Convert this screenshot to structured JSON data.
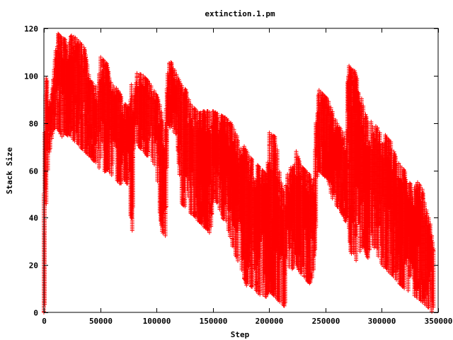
{
  "chart_data": {
    "type": "scatter",
    "title": "extinction.1.pm",
    "xlabel": "Step",
    "ylabel": "Stack Size",
    "xlim": [
      0,
      350000
    ],
    "ylim": [
      0,
      120
    ],
    "x_ticks": [
      0,
      50000,
      100000,
      150000,
      200000,
      250000,
      300000,
      350000
    ],
    "x_tick_labels": [
      "0",
      "50000",
      "100000",
      "150000",
      "200000",
      "250000",
      "300000",
      "350000"
    ],
    "y_ticks": [
      0,
      20,
      40,
      60,
      80,
      100,
      120
    ],
    "y_tick_labels": [
      "0",
      "20",
      "40",
      "60",
      "80",
      "100",
      "120"
    ],
    "grid": false,
    "legend": "none",
    "marker": "plus",
    "color": "#ff0000",
    "envelope": {
      "x": [
        0,
        1000,
        2000,
        4000,
        6000,
        8000,
        10000,
        12000,
        14000,
        16000,
        20000,
        24000,
        28000,
        32000,
        36000,
        40000,
        44000,
        48000,
        50000,
        52000,
        56000,
        60000,
        64000,
        68000,
        72000,
        76000,
        78000,
        80000,
        82000,
        84000,
        88000,
        92000,
        96000,
        100000,
        104000,
        106000,
        108000,
        110000,
        112000,
        114000,
        118000,
        122000,
        126000,
        130000,
        134000,
        138000,
        142000,
        146000,
        148000,
        150000,
        154000,
        158000,
        162000,
        166000,
        170000,
        174000,
        178000,
        180000,
        182000,
        186000,
        190000,
        194000,
        198000,
        200000,
        202000,
        206000,
        210000,
        212000,
        214000,
        216000,
        220000,
        224000,
        228000,
        232000,
        236000,
        240000,
        242000,
        244000,
        248000,
        252000,
        256000,
        260000,
        264000,
        268000,
        270000,
        272000,
        276000,
        280000,
        284000,
        288000,
        290000,
        292000,
        296000,
        300000,
        304000,
        308000,
        312000,
        316000,
        320000,
        324000,
        328000,
        332000,
        336000,
        340000,
        343000,
        345000,
        346000
      ],
      "high": [
        50,
        103,
        103,
        90,
        88,
        96,
        108,
        118,
        117,
        116,
        115,
        117,
        116,
        114,
        112,
        100,
        96,
        95,
        108,
        107,
        105,
        96,
        95,
        92,
        88,
        86,
        98,
        88,
        101,
        101,
        100,
        98,
        95,
        92,
        86,
        76,
        80,
        104,
        106,
        105,
        100,
        96,
        94,
        88,
        86,
        84,
        85,
        85,
        84,
        85,
        84,
        83,
        82,
        80,
        76,
        72,
        70,
        68,
        66,
        64,
        62,
        60,
        58,
        76,
        75,
        74,
        56,
        52,
        50,
        58,
        62,
        68,
        62,
        60,
        58,
        56,
        88,
        94,
        92,
        90,
        85,
        80,
        77,
        74,
        105,
        103,
        102,
        95,
        86,
        80,
        82,
        80,
        78,
        78,
        74,
        72,
        66,
        62,
        60,
        55,
        53,
        55,
        52,
        42,
        38,
        30,
        26
      ],
      "low": [
        0,
        4,
        45,
        65,
        70,
        76,
        78,
        77,
        76,
        74,
        75,
        74,
        72,
        70,
        68,
        66,
        64,
        62,
        60,
        59,
        60,
        58,
        56,
        54,
        56,
        52,
        28,
        58,
        72,
        70,
        68,
        66,
        64,
        60,
        35,
        33,
        32,
        80,
        78,
        76,
        75,
        46,
        44,
        42,
        40,
        38,
        36,
        34,
        33,
        48,
        46,
        40,
        38,
        30,
        24,
        20,
        14,
        11,
        12,
        10,
        8,
        7,
        6,
        9,
        8,
        6,
        4,
        3,
        2,
        20,
        18,
        20,
        16,
        14,
        12,
        16,
        42,
        60,
        58,
        56,
        48,
        45,
        42,
        38,
        42,
        26,
        20,
        25,
        28,
        22,
        30,
        28,
        24,
        20,
        18,
        16,
        14,
        12,
        10,
        9,
        7,
        6,
        4,
        2,
        1,
        0,
        2
      ]
    }
  }
}
